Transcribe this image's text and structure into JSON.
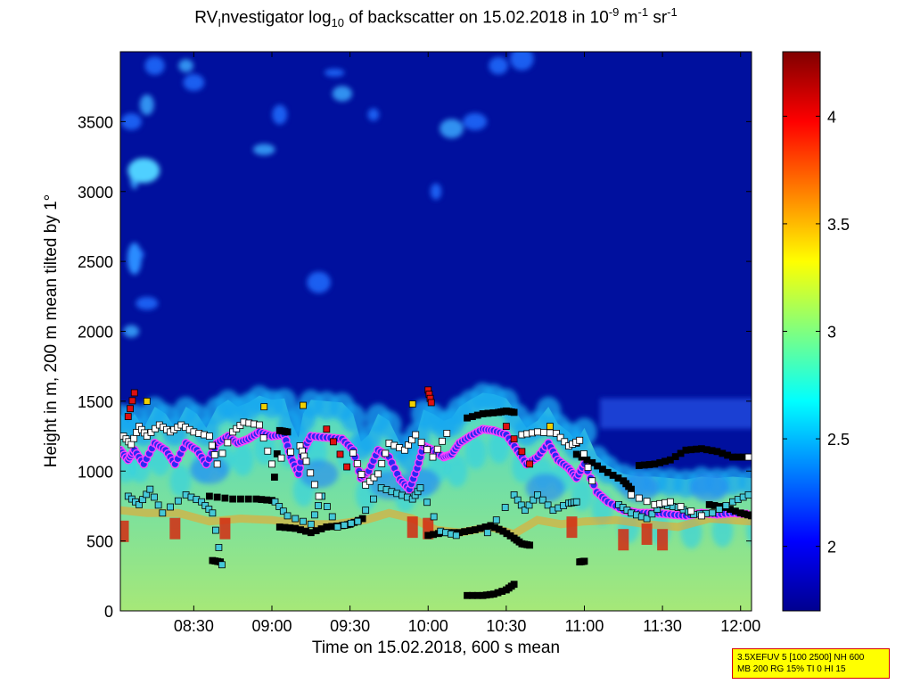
{
  "title": {
    "prefix": "RV",
    "sub1": "I",
    "mid": "nvestigator log",
    "sub2": "10",
    "mid2": " of backscatter on 15.02.2018 in 10",
    "sup1": "-9",
    "mid3": " m",
    "sup2": "-1",
    "mid4": " sr",
    "sup3": "-1"
  },
  "settings_box": {
    "line1": "3.5XEFUV 5 [100 2500] NH 600",
    "line2": "MB 200 RG 15% TI 0 HI 15"
  },
  "chart_data": {
    "type": "heatmap",
    "xlabel": "Time on 15.02.2018, 600 s mean",
    "ylabel": "Height in m, 200 m mean tilted by 1°",
    "x_ticks": [
      "08:30",
      "09:00",
      "09:30",
      "10:00",
      "10:30",
      "11:00",
      "11:30",
      "12:00"
    ],
    "x_tick_hours": [
      8.5,
      9.0,
      9.5,
      10.0,
      10.5,
      11.0,
      11.5,
      12.0
    ],
    "xlim_hours": [
      8.03,
      12.07
    ],
    "y_ticks": [
      "0",
      "500",
      "1000",
      "1500",
      "2000",
      "2500",
      "3000",
      "3500"
    ],
    "y_tick_values": [
      0,
      500,
      1000,
      1500,
      2000,
      2500,
      3000,
      3500
    ],
    "ylim": [
      0,
      4000
    ],
    "colorbar": {
      "ticks": [
        "2",
        "2.5",
        "3",
        "3.5",
        "4"
      ],
      "tick_values": [
        2,
        2.5,
        3,
        3.5,
        4
      ],
      "range": [
        1.7,
        4.3
      ],
      "colormap": "jet"
    },
    "layer_top_m": [
      [
        8.03,
        1150
      ],
      [
        8.08,
        1080
      ],
      [
        8.12,
        1150
      ],
      [
        8.18,
        1050
      ],
      [
        8.25,
        1200
      ],
      [
        8.32,
        1150
      ],
      [
        8.38,
        1050
      ],
      [
        8.45,
        1200
      ],
      [
        8.52,
        1150
      ],
      [
        8.58,
        1050
      ],
      [
        8.65,
        1200
      ],
      [
        8.72,
        1250
      ],
      [
        8.78,
        1200
      ],
      [
        8.85,
        1230
      ],
      [
        8.92,
        1280
      ],
      [
        9.0,
        1250
      ],
      [
        9.08,
        1260
      ],
      [
        9.12,
        1100
      ],
      [
        9.17,
        980
      ],
      [
        9.2,
        1150
      ],
      [
        9.25,
        1250
      ],
      [
        9.35,
        1240
      ],
      [
        9.45,
        1230
      ],
      [
        9.52,
        1150
      ],
      [
        9.57,
        950
      ],
      [
        9.62,
        1000
      ],
      [
        9.68,
        1150
      ],
      [
        9.75,
        1100
      ],
      [
        9.82,
        940
      ],
      [
        9.88,
        870
      ],
      [
        9.93,
        1020
      ],
      [
        9.97,
        1180
      ],
      [
        10.03,
        1150
      ],
      [
        10.1,
        1100
      ],
      [
        10.15,
        1120
      ],
      [
        10.2,
        1200
      ],
      [
        10.27,
        1250
      ],
      [
        10.35,
        1300
      ],
      [
        10.42,
        1290
      ],
      [
        10.5,
        1260
      ],
      [
        10.57,
        1150
      ],
      [
        10.63,
        1050
      ],
      [
        10.7,
        1100
      ],
      [
        10.77,
        1200
      ],
      [
        10.83,
        1080
      ],
      [
        10.9,
        1020
      ],
      [
        10.95,
        950
      ],
      [
        11.0,
        1050
      ],
      [
        11.08,
        850
      ],
      [
        11.15,
        780
      ],
      [
        11.25,
        720
      ],
      [
        11.35,
        700
      ],
      [
        11.45,
        700
      ],
      [
        11.55,
        690
      ],
      [
        11.65,
        680
      ],
      [
        11.75,
        700
      ],
      [
        11.85,
        690
      ],
      [
        11.95,
        700
      ],
      [
        12.07,
        690
      ]
    ],
    "lower_layer_m": [
      [
        8.03,
        720
      ],
      [
        8.2,
        700
      ],
      [
        8.4,
        700
      ],
      [
        8.6,
        640
      ],
      [
        8.8,
        660
      ],
      [
        9.0,
        650
      ],
      [
        9.2,
        620
      ],
      [
        9.4,
        620
      ],
      [
        9.6,
        650
      ],
      [
        9.75,
        700
      ],
      [
        9.9,
        660
      ],
      [
        10.05,
        580
      ],
      [
        10.2,
        560
      ],
      [
        10.4,
        600
      ],
      [
        10.55,
        550
      ],
      [
        10.7,
        650
      ],
      [
        10.85,
        620
      ],
      [
        11.0,
        640
      ],
      [
        11.2,
        650
      ],
      [
        11.4,
        620
      ],
      [
        11.6,
        600
      ],
      [
        11.8,
        660
      ],
      [
        12.07,
        640
      ]
    ],
    "marker_series": [
      {
        "color": "#000000",
        "points": [
          [
            8.6,
            820
          ],
          [
            8.75,
            800
          ],
          [
            8.9,
            800
          ],
          [
            9.0,
            790
          ],
          [
            9.05,
            1290
          ],
          [
            9.1,
            1280
          ]
        ]
      },
      {
        "color": "#000000",
        "points": [
          [
            9.05,
            600
          ],
          [
            9.15,
            590
          ],
          [
            9.25,
            560
          ],
          [
            9.35,
            600
          ],
          [
            9.45,
            610
          ],
          [
            9.5,
            620
          ],
          [
            9.58,
            660
          ]
        ]
      },
      {
        "color": "#000000",
        "points": [
          [
            10.0,
            540
          ],
          [
            10.1,
            560
          ],
          [
            10.2,
            560
          ],
          [
            10.3,
            580
          ],
          [
            10.4,
            610
          ],
          [
            10.48,
            570
          ],
          [
            10.55,
            520
          ],
          [
            10.6,
            480
          ],
          [
            10.65,
            470
          ]
        ]
      },
      {
        "color": "#000000",
        "points": [
          [
            10.25,
            1380
          ],
          [
            10.35,
            1410
          ],
          [
            10.45,
            1420
          ],
          [
            10.5,
            1430
          ],
          [
            10.55,
            1420
          ]
        ]
      },
      {
        "color": "#000000",
        "points": [
          [
            10.25,
            110
          ],
          [
            10.35,
            110
          ],
          [
            10.42,
            120
          ],
          [
            10.5,
            150
          ],
          [
            10.55,
            190
          ]
        ]
      },
      {
        "color": "#000000",
        "points": [
          [
            10.95,
            1120
          ],
          [
            11.05,
            1060
          ],
          [
            11.15,
            990
          ],
          [
            11.25,
            930
          ],
          [
            11.3,
            870
          ]
        ]
      },
      {
        "color": "#000000",
        "points": [
          [
            11.35,
            1040
          ],
          [
            11.45,
            1050
          ],
          [
            11.55,
            1080
          ],
          [
            11.65,
            1150
          ],
          [
            11.75,
            1160
          ],
          [
            11.85,
            1140
          ],
          [
            11.95,
            1100
          ],
          [
            12.05,
            1100
          ]
        ]
      },
      {
        "color": "#000000",
        "points": [
          [
            11.8,
            760
          ],
          [
            11.9,
            740
          ],
          [
            12.0,
            700
          ],
          [
            12.07,
            680
          ]
        ]
      },
      {
        "color": "#000000",
        "points": [
          [
            8.62,
            360
          ],
          [
            8.67,
            350
          ],
          [
            10.97,
            350
          ],
          [
            11.0,
            355
          ]
        ]
      },
      {
        "color": "#e01010",
        "points": [
          [
            8.08,
            1390
          ],
          [
            8.12,
            1560
          ],
          [
            8.62,
            1180
          ],
          [
            9.35,
            1300
          ],
          [
            9.48,
            1030
          ],
          [
            10.0,
            1580
          ],
          [
            10.02,
            1490
          ],
          [
            10.5,
            1320
          ],
          [
            10.65,
            1050
          ],
          [
            10.95,
            1200
          ]
        ]
      },
      {
        "color": "#f0d000",
        "points": [
          [
            8.2,
            1500
          ],
          [
            8.95,
            1460
          ],
          [
            9.2,
            1470
          ],
          [
            9.9,
            1480
          ],
          [
            10.78,
            1320
          ]
        ]
      },
      {
        "color": "#45c8d8",
        "points": [
          [
            8.08,
            820
          ],
          [
            8.15,
            760
          ],
          [
            8.22,
            870
          ],
          [
            8.3,
            700
          ],
          [
            8.45,
            830
          ],
          [
            8.55,
            780
          ],
          [
            8.62,
            700
          ],
          [
            8.68,
            330
          ],
          [
            9.02,
            780
          ],
          [
            9.1,
            680
          ],
          [
            9.25,
            620
          ],
          [
            9.32,
            820
          ],
          [
            9.42,
            600
          ],
          [
            9.55,
            640
          ],
          [
            9.7,
            880
          ],
          [
            9.8,
            840
          ],
          [
            9.9,
            800
          ],
          [
            9.95,
            880
          ],
          [
            10.08,
            570
          ],
          [
            10.18,
            540
          ],
          [
            10.38,
            560
          ],
          [
            10.55,
            830
          ],
          [
            10.62,
            720
          ],
          [
            10.7,
            830
          ],
          [
            10.8,
            720
          ],
          [
            10.9,
            770
          ],
          [
            10.95,
            780
          ],
          [
            11.22,
            760
          ],
          [
            11.3,
            700
          ],
          [
            11.4,
            660
          ],
          [
            11.5,
            760
          ],
          [
            11.6,
            740
          ],
          [
            11.7,
            690
          ],
          [
            11.82,
            700
          ],
          [
            11.95,
            780
          ],
          [
            12.05,
            830
          ]
        ]
      },
      {
        "color": "#ffffff",
        "points": [
          [
            8.05,
            1250
          ],
          [
            8.1,
            1190
          ],
          [
            8.15,
            1320
          ],
          [
            8.2,
            1250
          ],
          [
            8.28,
            1330
          ],
          [
            8.35,
            1280
          ],
          [
            8.42,
            1330
          ],
          [
            8.5,
            1280
          ],
          [
            8.6,
            1250
          ],
          [
            8.65,
            1050
          ],
          [
            8.75,
            1280
          ],
          [
            8.82,
            1350
          ],
          [
            8.92,
            1330
          ],
          [
            9.0,
            1050
          ],
          [
            9.18,
            1180
          ],
          [
            9.22,
            1070
          ],
          [
            9.3,
            820
          ],
          [
            9.52,
            1130
          ],
          [
            9.6,
            900
          ],
          [
            9.68,
            980
          ],
          [
            9.75,
            1200
          ],
          [
            9.85,
            1150
          ],
          [
            9.92,
            1260
          ],
          [
            10.03,
            1100
          ],
          [
            10.12,
            1270
          ],
          [
            10.6,
            1260
          ],
          [
            10.7,
            1280
          ],
          [
            10.82,
            1270
          ],
          [
            10.9,
            1180
          ],
          [
            10.97,
            1220
          ],
          [
            11.05,
            930
          ],
          [
            11.3,
            830
          ],
          [
            11.45,
            760
          ],
          [
            11.55,
            780
          ],
          [
            11.75,
            680
          ],
          [
            12.05,
            1100
          ]
        ]
      }
    ]
  }
}
